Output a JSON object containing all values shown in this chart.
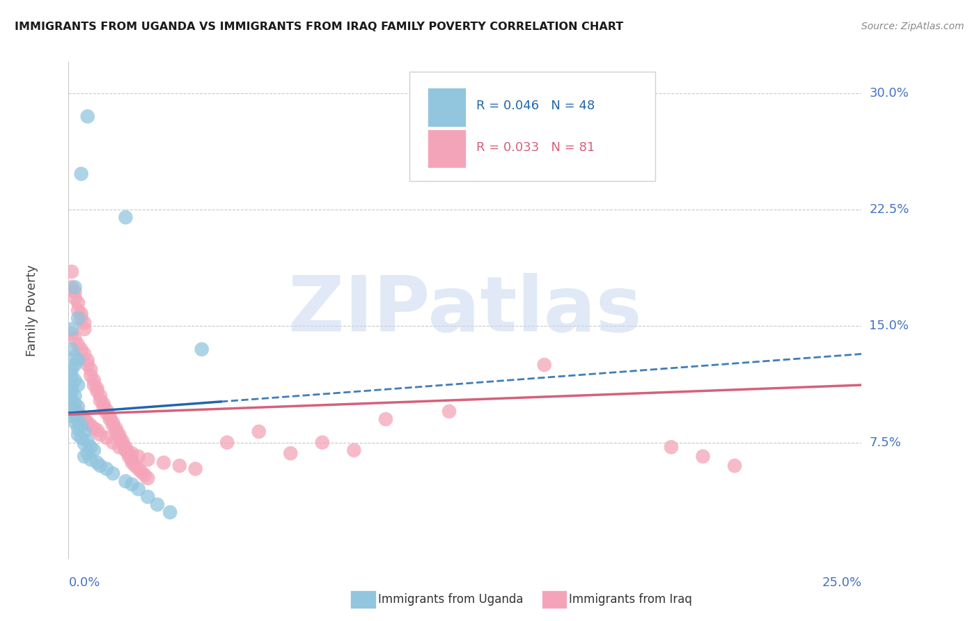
{
  "title": "IMMIGRANTS FROM UGANDA VS IMMIGRANTS FROM IRAQ FAMILY POVERTY CORRELATION CHART",
  "source": "Source: ZipAtlas.com",
  "ylabel": "Family Poverty",
  "ytick_labels": [
    "7.5%",
    "15.0%",
    "22.5%",
    "30.0%"
  ],
  "ytick_values": [
    0.075,
    0.15,
    0.225,
    0.3
  ],
  "xlim": [
    0.0,
    0.25
  ],
  "ylim": [
    0.0,
    0.32
  ],
  "legend_labels": [
    "Immigrants from Uganda",
    "Immigrants from Iraq"
  ],
  "uganda_color": "#92c5de",
  "iraq_color": "#f4a4b8",
  "uganda_line_color": "#2166ac",
  "iraq_line_color": "#d6607a",
  "watermark_color": "#c8d8ee",
  "background_color": "#ffffff",
  "grid_color": "#c8c8c8",
  "right_label_color": "#4472c4",
  "bottom_label_color": "#4472c4",
  "uganda_x": [
    0.006,
    0.004,
    0.018,
    0.002,
    0.003,
    0.001,
    0.001,
    0.002,
    0.003,
    0.002,
    0.001,
    0.001,
    0.002,
    0.003,
    0.001,
    0.001,
    0.002,
    0.001,
    0.002,
    0.003,
    0.001,
    0.002,
    0.001,
    0.003,
    0.002,
    0.004,
    0.003,
    0.005,
    0.003,
    0.004,
    0.006,
    0.005,
    0.007,
    0.008,
    0.006,
    0.005,
    0.007,
    0.009,
    0.01,
    0.012,
    0.014,
    0.018,
    0.02,
    0.022,
    0.025,
    0.028,
    0.032,
    0.042
  ],
  "uganda_y": [
    0.285,
    0.248,
    0.22,
    0.175,
    0.155,
    0.148,
    0.135,
    0.13,
    0.128,
    0.125,
    0.122,
    0.118,
    0.115,
    0.112,
    0.11,
    0.108,
    0.105,
    0.102,
    0.1,
    0.098,
    0.096,
    0.094,
    0.092,
    0.09,
    0.088,
    0.086,
    0.084,
    0.082,
    0.08,
    0.078,
    0.076,
    0.074,
    0.072,
    0.07,
    0.068,
    0.066,
    0.064,
    0.062,
    0.06,
    0.058,
    0.055,
    0.05,
    0.048,
    0.045,
    0.04,
    0.035,
    0.03,
    0.135
  ],
  "iraq_x": [
    0.001,
    0.001,
    0.002,
    0.002,
    0.003,
    0.003,
    0.004,
    0.004,
    0.005,
    0.005,
    0.001,
    0.002,
    0.003,
    0.004,
    0.005,
    0.006,
    0.006,
    0.007,
    0.007,
    0.008,
    0.008,
    0.009,
    0.009,
    0.01,
    0.01,
    0.011,
    0.011,
    0.012,
    0.012,
    0.013,
    0.013,
    0.014,
    0.014,
    0.015,
    0.015,
    0.016,
    0.016,
    0.017,
    0.017,
    0.018,
    0.018,
    0.019,
    0.019,
    0.02,
    0.02,
    0.021,
    0.022,
    0.023,
    0.024,
    0.025,
    0.001,
    0.002,
    0.003,
    0.004,
    0.005,
    0.006,
    0.007,
    0.008,
    0.009,
    0.01,
    0.012,
    0.014,
    0.016,
    0.018,
    0.02,
    0.022,
    0.025,
    0.03,
    0.035,
    0.04,
    0.05,
    0.06,
    0.07,
    0.08,
    0.09,
    0.1,
    0.12,
    0.15,
    0.19,
    0.2,
    0.21
  ],
  "iraq_y": [
    0.185,
    0.175,
    0.172,
    0.168,
    0.165,
    0.16,
    0.158,
    0.155,
    0.152,
    0.148,
    0.145,
    0.142,
    0.138,
    0.135,
    0.132,
    0.128,
    0.125,
    0.122,
    0.118,
    0.115,
    0.112,
    0.11,
    0.108,
    0.105,
    0.102,
    0.1,
    0.098,
    0.096,
    0.094,
    0.092,
    0.09,
    0.088,
    0.086,
    0.084,
    0.082,
    0.08,
    0.078,
    0.076,
    0.074,
    0.072,
    0.07,
    0.068,
    0.066,
    0.064,
    0.062,
    0.06,
    0.058,
    0.056,
    0.054,
    0.052,
    0.098,
    0.096,
    0.094,
    0.092,
    0.09,
    0.088,
    0.086,
    0.084,
    0.083,
    0.08,
    0.078,
    0.075,
    0.072,
    0.07,
    0.068,
    0.066,
    0.064,
    0.062,
    0.06,
    0.058,
    0.075,
    0.082,
    0.068,
    0.075,
    0.07,
    0.09,
    0.095,
    0.125,
    0.072,
    0.066,
    0.06
  ]
}
